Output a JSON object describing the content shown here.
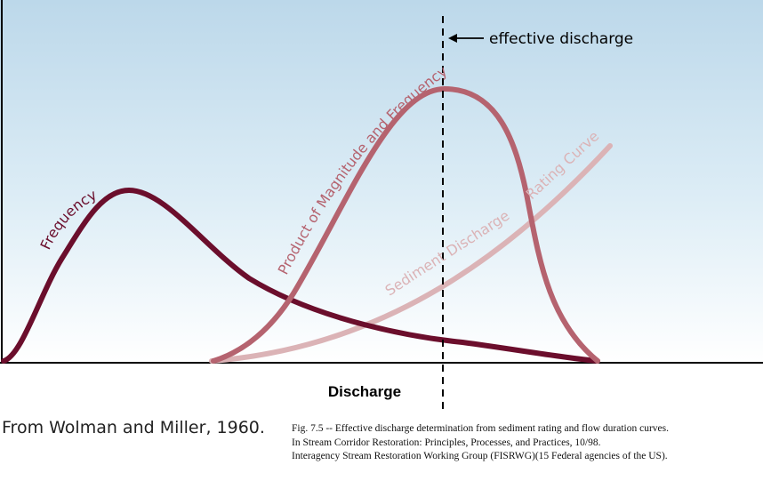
{
  "diagram": {
    "x_axis_label": "Discharge",
    "annotation": "effective discharge",
    "curves": {
      "frequency": {
        "label": "Frequency",
        "color": "#6b0e2c"
      },
      "product": {
        "label": "Product of Magnitude and Frequency",
        "color": "#b5636f"
      },
      "rating": {
        "label": "Sediment Discharge Rating Curve",
        "label_part1": "Sediment Discharge",
        "label_part2": "Rating Curve",
        "color": "#dbb3b6"
      }
    },
    "background_top_color": "#bcd8ea",
    "background_bottom_color": "#ffffff"
  },
  "captions": {
    "source": "From Wolman and Miller, 1960.",
    "fig_lines": [
      "Fig. 7.5 -- Effective discharge determination from sediment rating and flow duration curves.",
      "In Stream Corridor Restoration: Principles, Processes, and Practices, 10/98.",
      "Interagency Stream Restoration Working Group (FISRWG)(15 Federal agencies of the US)."
    ]
  }
}
